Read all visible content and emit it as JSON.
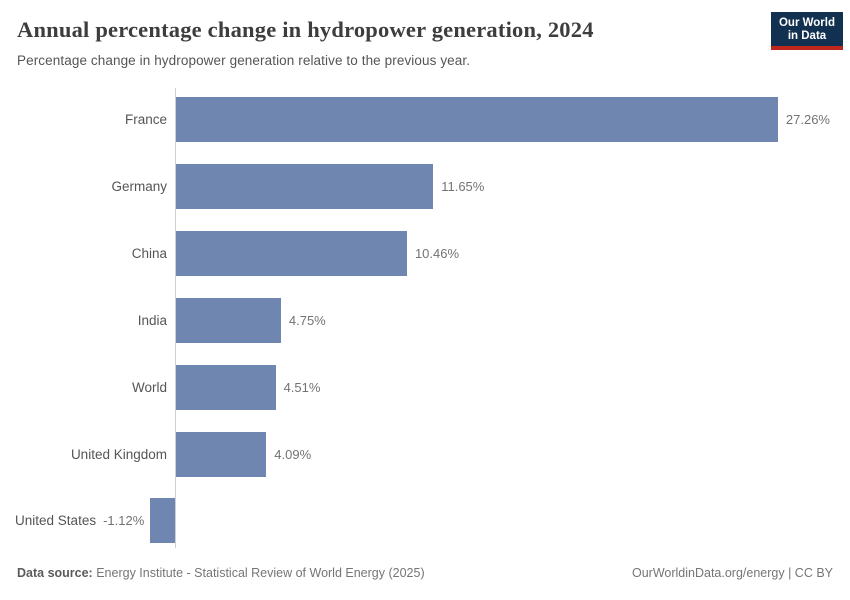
{
  "header": {
    "title": "Annual percentage change in hydropower generation, 2024",
    "subtitle": "Percentage change in hydropower generation relative to the previous year.",
    "logo": {
      "line1": "Our World",
      "line2": "in Data",
      "bg_color": "#12304f",
      "accent_color": "#c0271c"
    }
  },
  "chart_data": {
    "type": "bar",
    "orientation": "horizontal",
    "title": "Annual percentage change in hydropower generation, 2024",
    "categories": [
      "France",
      "Germany",
      "China",
      "India",
      "World",
      "United Kingdom",
      "United States"
    ],
    "values": [
      27.26,
      11.65,
      10.46,
      4.75,
      4.51,
      4.09,
      -1.12
    ],
    "value_labels": [
      "27.26%",
      "11.65%",
      "10.46%",
      "4.75%",
      "4.51%",
      "4.09%",
      "-1.12%"
    ],
    "unit": "%",
    "bar_color": "#6e86b0",
    "axis_color": "#cfcfcf",
    "xlim": [
      -1.12,
      27.26
    ],
    "grid": false,
    "legend": "none"
  },
  "footer": {
    "source_label": "Data source:",
    "source_text": "Energy Institute - Statistical Review of World Energy (2025)",
    "credit": "OurWorldinData.org/energy | CC BY"
  }
}
